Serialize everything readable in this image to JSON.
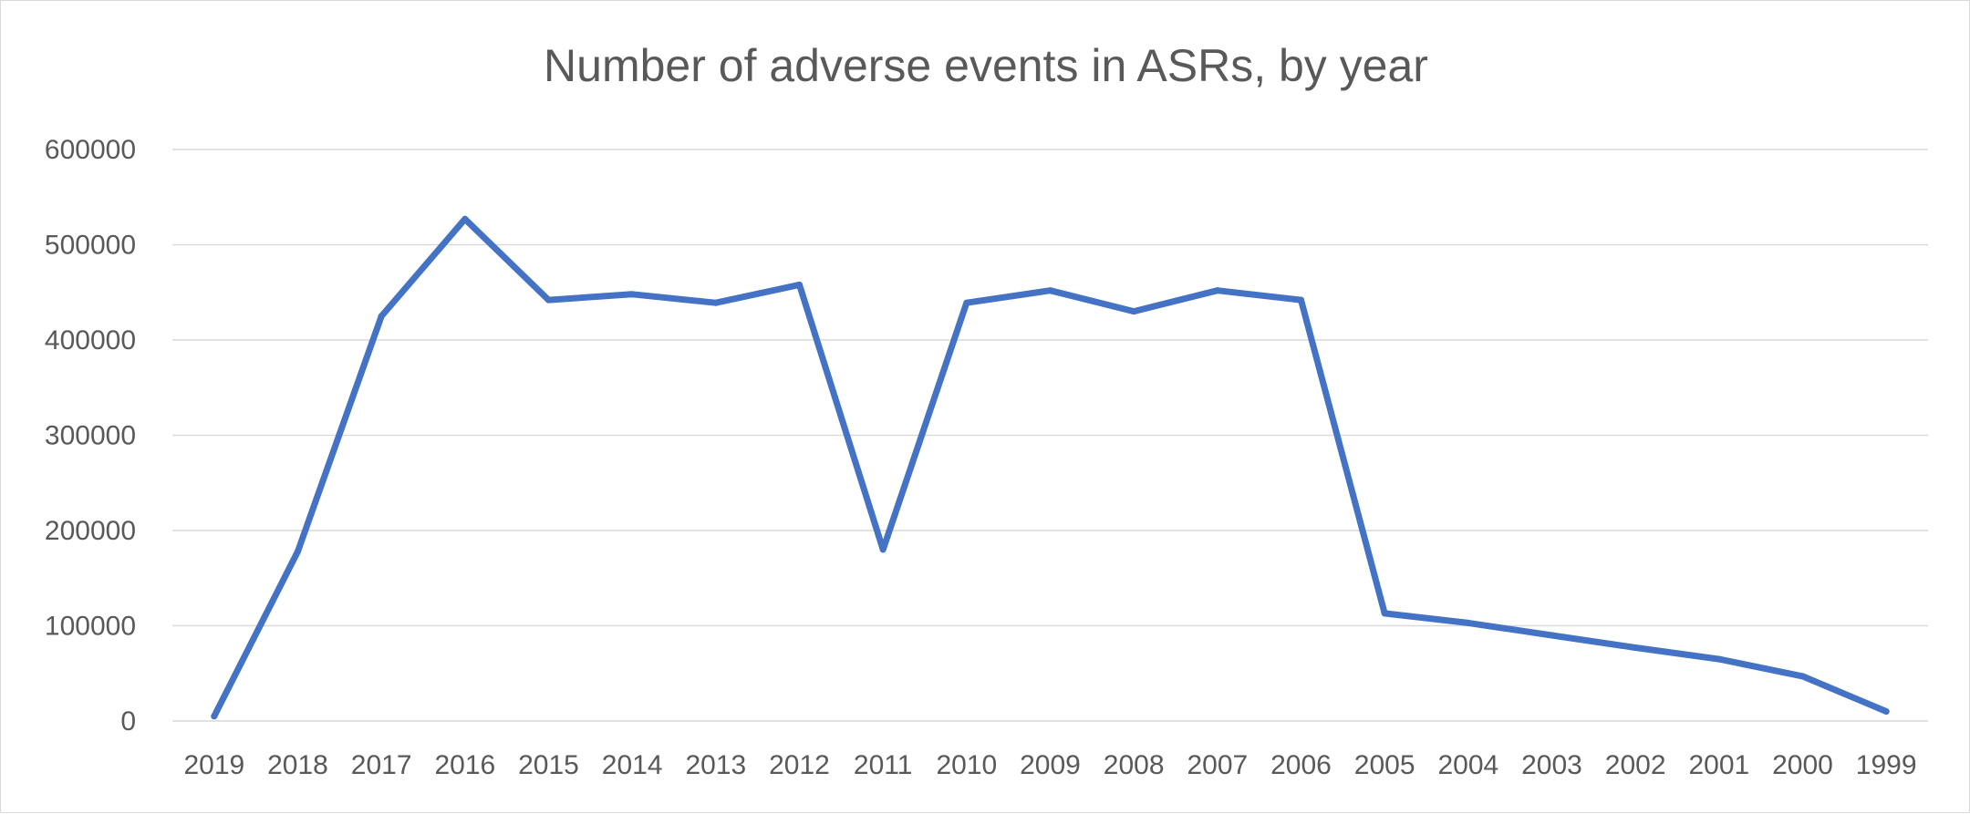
{
  "chart_data": {
    "type": "line",
    "title": "Number of adverse events in ASRs, by year",
    "xlabel": "",
    "ylabel": "",
    "categories": [
      "2019",
      "2018",
      "2017",
      "2016",
      "2015",
      "2014",
      "2013",
      "2012",
      "2011",
      "2010",
      "2009",
      "2008",
      "2007",
      "2006",
      "2005",
      "2004",
      "2003",
      "2002",
      "2001",
      "2000",
      "1999"
    ],
    "series": [
      {
        "values": [
          5000,
          178000,
          425000,
          527000,
          442000,
          448000,
          439000,
          458000,
          180000,
          439000,
          452000,
          430000,
          452000,
          442000,
          113000,
          103000,
          90000,
          77000,
          65000,
          47000,
          10000
        ]
      }
    ],
    "yticks": [
      "0",
      "100000",
      "200000",
      "300000",
      "400000",
      "500000",
      "600000"
    ],
    "ylim": [
      0,
      600000
    ],
    "grid": true,
    "legend": "none",
    "line_color": "#4472c4"
  }
}
